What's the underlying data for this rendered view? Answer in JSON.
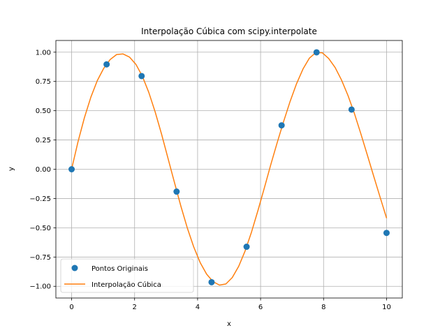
{
  "chart_data": {
    "type": "line",
    "title": "Interpolação Cúbica com scipy.interpolate",
    "xlabel": "x",
    "ylabel": "y",
    "xlim": [
      -0.5,
      10.5
    ],
    "ylim": [
      -1.1,
      1.1
    ],
    "x_ticks": [
      0,
      2,
      4,
      6,
      8,
      10
    ],
    "x_tick_labels": [
      "0",
      "2",
      "4",
      "6",
      "8",
      "10"
    ],
    "y_ticks": [
      -1.0,
      -0.75,
      -0.5,
      -0.25,
      0.0,
      0.25,
      0.5,
      0.75,
      1.0
    ],
    "y_tick_labels": [
      "−1.00",
      "−0.75",
      "−0.50",
      "−0.25",
      "0.00",
      "0.25",
      "0.50",
      "0.75",
      "1.00"
    ],
    "grid": true,
    "legend_position": "lower-left",
    "series": [
      {
        "name": "Pontos Originais",
        "kind": "scatter",
        "color": "#1f77b4",
        "x": [
          0,
          1.111,
          2.222,
          3.333,
          4.444,
          5.556,
          6.667,
          7.778,
          8.889,
          10
        ],
        "y": [
          0.0,
          0.896,
          0.796,
          -0.191,
          -0.965,
          -0.662,
          0.375,
          0.999,
          0.51,
          -0.544
        ]
      },
      {
        "name": "Interpolação Cúbica",
        "kind": "line",
        "color": "#ff7f0e",
        "x": [
          0.0,
          0.204,
          0.408,
          0.612,
          0.816,
          1.02,
          1.224,
          1.429,
          1.633,
          1.837,
          2.041,
          2.245,
          2.449,
          2.653,
          2.857,
          3.061,
          3.265,
          3.469,
          3.673,
          3.878,
          4.082,
          4.286,
          4.49,
          4.694,
          4.898,
          5.102,
          5.306,
          5.51,
          5.714,
          5.918,
          6.122,
          6.327,
          6.531,
          6.735,
          6.939,
          7.143,
          7.347,
          7.551,
          7.755,
          7.959,
          8.163,
          8.367,
          8.571,
          8.776,
          8.98,
          9.184,
          9.388,
          9.592,
          9.796,
          10.0
        ],
        "y": [
          0.0,
          0.235,
          0.441,
          0.616,
          0.757,
          0.862,
          0.937,
          0.98,
          0.985,
          0.958,
          0.896,
          0.795,
          0.657,
          0.489,
          0.298,
          0.092,
          -0.114,
          -0.316,
          -0.502,
          -0.664,
          -0.797,
          -0.896,
          -0.96,
          -0.99,
          -0.98,
          -0.925,
          -0.829,
          -0.697,
          -0.535,
          -0.351,
          -0.157,
          0.041,
          0.23,
          0.41,
          0.58,
          0.731,
          0.856,
          0.949,
          0.997,
          0.995,
          0.946,
          0.869,
          0.762,
          0.629,
          0.475,
          0.302,
          0.122,
          -0.06,
          -0.24,
          -0.418
        ]
      }
    ]
  }
}
